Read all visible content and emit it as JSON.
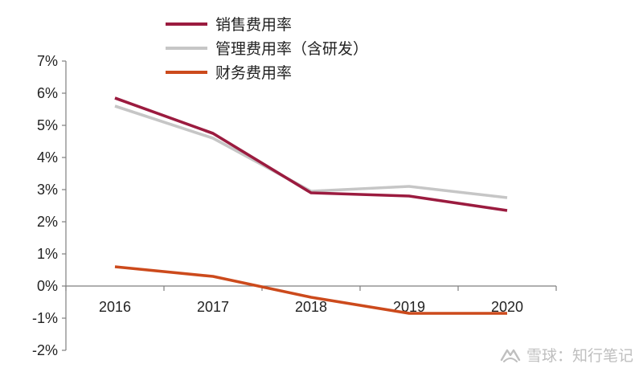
{
  "colors": {
    "sales": "#9b1b3f",
    "admin": "#c6c6c6",
    "finance": "#cc4a1c",
    "axis": "#7f7f7f",
    "watermark": "#bfbfbf"
  },
  "watermark": {
    "text": "雪球：知行笔记"
  },
  "chart_data": {
    "type": "line",
    "title": "",
    "xlabel": "",
    "ylabel": "",
    "categories": [
      "2016",
      "2017",
      "2018",
      "2019",
      "2020"
    ],
    "ylim": [
      -2,
      7
    ],
    "yticks": [
      -2,
      -1,
      0,
      1,
      2,
      3,
      4,
      5,
      6,
      7
    ],
    "ytick_labels": [
      "-2%",
      "-1%",
      "0%",
      "1%",
      "2%",
      "3%",
      "4%",
      "5%",
      "6%",
      "7%"
    ],
    "grid": false,
    "legend_position": "top",
    "series": [
      {
        "name": "销售费用率",
        "color": "#9b1b3f",
        "values": [
          5.85,
          4.75,
          2.9,
          2.8,
          2.35
        ]
      },
      {
        "name": "管理费用率（含研发）",
        "color": "#c6c6c6",
        "values": [
          5.6,
          4.6,
          2.95,
          3.1,
          2.75
        ]
      },
      {
        "name": "财务费用率",
        "color": "#cc4a1c",
        "values": [
          0.6,
          0.3,
          -0.35,
          -0.85,
          -0.85
        ]
      }
    ]
  }
}
